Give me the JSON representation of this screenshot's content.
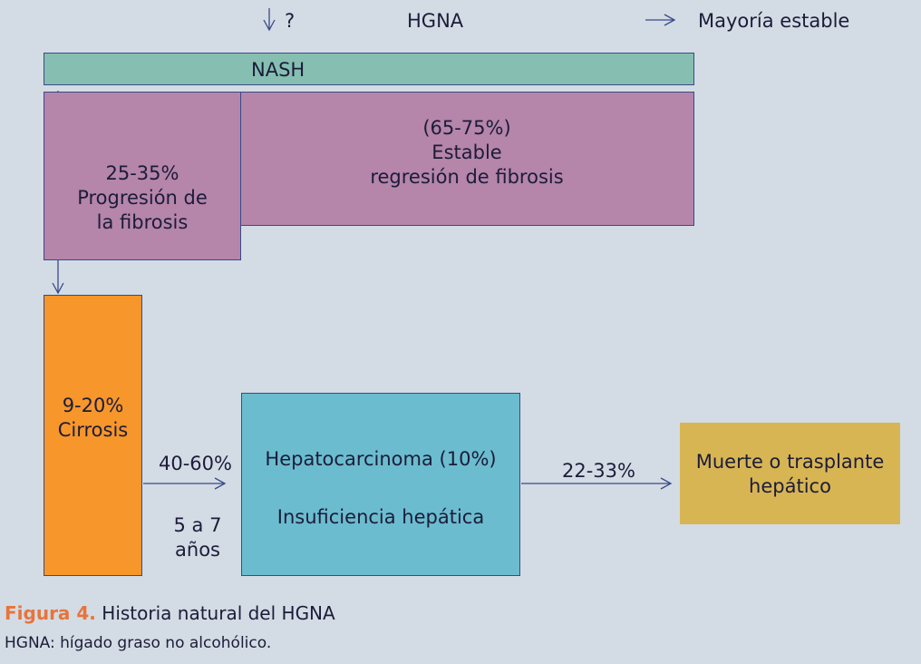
{
  "header": {
    "question_mark": "?",
    "hgna": "HGNA",
    "mayoria_estable": "Mayoría estable"
  },
  "nash": {
    "label": "NASH"
  },
  "stable": {
    "line1": "(65-75%)",
    "line2": "Estable",
    "line3": "regresión de fibrosis"
  },
  "progression": {
    "line1": "25-35%",
    "line2": "Progresión de",
    "line3": "la fibrosis"
  },
  "cirrhosis": {
    "line1": "9-20%",
    "line2": "Cirrosis"
  },
  "transition1": {
    "percent": "40-60%",
    "years_line1": "5 a 7",
    "years_line2": "años"
  },
  "complications": {
    "line1": "Hepatocarcinoma (10%)",
    "line2": "Insuficiencia hepática"
  },
  "transition2": {
    "percent": "22-33%"
  },
  "outcome": {
    "line1": "Muerte o trasplante",
    "line2": "hepático"
  },
  "caption": {
    "figure_label": "Figura 4.",
    "figure_title": "Historia natural del HGNA",
    "note": "HGNA: hígado graso no alcohólico."
  },
  "colors": {
    "background": "#d3dce4",
    "nash": "#86bfb1",
    "purple": "#b585aa",
    "orange": "#f7962a",
    "blue": "#6bbccf",
    "gold": "#d7b553",
    "line": "#3a4a8a",
    "caption_accent": "#e8743b"
  }
}
